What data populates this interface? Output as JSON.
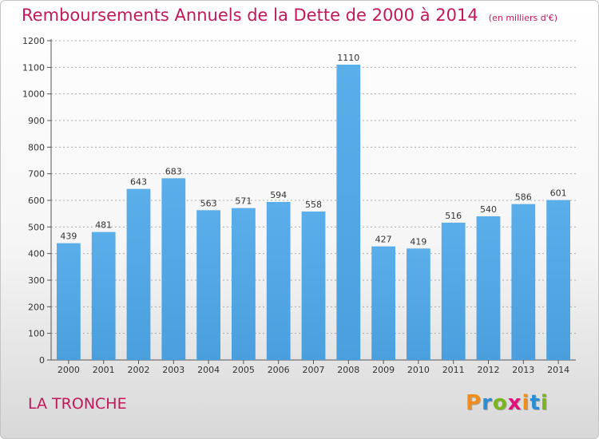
{
  "chart_data": {
    "type": "bar",
    "title": "Remboursements Annuels de la Dette de 2000 à 2014",
    "unit": "(en milliers d'€)",
    "categories": [
      "2000",
      "2001",
      "2002",
      "2003",
      "2004",
      "2005",
      "2006",
      "2007",
      "2008",
      "2009",
      "2010",
      "2011",
      "2012",
      "2013",
      "2014"
    ],
    "values": [
      439,
      481,
      643,
      683,
      563,
      571,
      594,
      558,
      1110,
      427,
      419,
      516,
      540,
      586,
      601
    ],
    "ylim": [
      0,
      1200
    ],
    "yticks": [
      0,
      100,
      200,
      300,
      400,
      500,
      600,
      700,
      800,
      900,
      1000,
      1100,
      1200
    ],
    "grid": true,
    "bar_color": "#4a9fde"
  },
  "commune": "LA TRONCHE",
  "brand": {
    "name": "Proxiti",
    "letters": [
      {
        "char": "P",
        "color": "#f28c1a"
      },
      {
        "char": "r",
        "color": "#2a8dd4"
      },
      {
        "char": "o",
        "color": "#7ab51d"
      },
      {
        "char": "x",
        "color": "#e30f7a"
      },
      {
        "char": "i",
        "color": "#f28c1a"
      },
      {
        "char": "t",
        "color": "#2a8dd4"
      },
      {
        "char": "i",
        "color": "#7ab51d"
      }
    ]
  },
  "colors": {
    "accent": "#c2185b"
  }
}
